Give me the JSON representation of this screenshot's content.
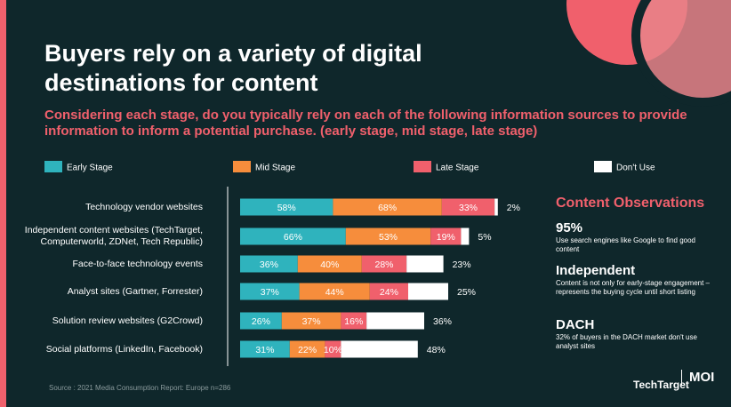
{
  "chart_data": {
    "type": "stacked-bar-horizontal",
    "title": "Buyers rely on a variety of digital destinations for content",
    "subtitle": "Considering each stage, do you typically rely on each of the following information sources to provide information to inform a potential purchase. (early stage, mid stage, late stage)",
    "categories": [
      "Technology vendor websites",
      "Independent content websites (TechTarget, Computerworld, ZDNet, Tech Republic)",
      "Face-to-face technology events",
      "Analyst sites (Gartner, Forrester)",
      "Solution review websites (G2Crowd)",
      "Social platforms (LinkedIn, Facebook)"
    ],
    "series": [
      {
        "name": "Early Stage",
        "color": "#2fb3bd",
        "values": [
          58,
          66,
          36,
          37,
          26,
          31
        ],
        "value_labels": [
          "58%",
          "66%",
          "36%",
          "37%",
          "26%",
          "31%"
        ]
      },
      {
        "name": "Mid Stage",
        "color": "#f68d3c",
        "values": [
          68,
          53,
          40,
          44,
          37,
          22
        ],
        "value_labels": [
          "68%",
          "53%",
          "40%",
          "44%",
          "37%",
          "22%"
        ]
      },
      {
        "name": "Late Stage",
        "color": "#f0606c",
        "values": [
          33,
          19,
          28,
          24,
          16,
          10
        ],
        "value_labels": [
          "33%",
          "19%",
          "28%",
          "24%",
          "16%",
          "10%"
        ]
      },
      {
        "name": "Don't Use",
        "color": "#ffffff",
        "values": [
          2,
          5,
          23,
          25,
          36,
          48
        ],
        "value_labels": [
          "2%",
          "5%",
          "23%",
          "25%",
          "36%",
          "48%"
        ]
      }
    ],
    "source": "Source : 2021 Media Consumption Report: Europe n=286"
  },
  "observations": {
    "title": "Content Observations",
    "items": [
      {
        "heading": "95%",
        "text": "Use search engines like Google to find good content"
      },
      {
        "heading": "Independent",
        "text": "Content is not only for early-stage engagement – represents the buying cycle until short listing"
      },
      {
        "heading": "DACH",
        "text": "32% of buyers in the DACH market don't use analyst sites"
      }
    ]
  },
  "logos": [
    "TechTarget",
    "MOI"
  ]
}
